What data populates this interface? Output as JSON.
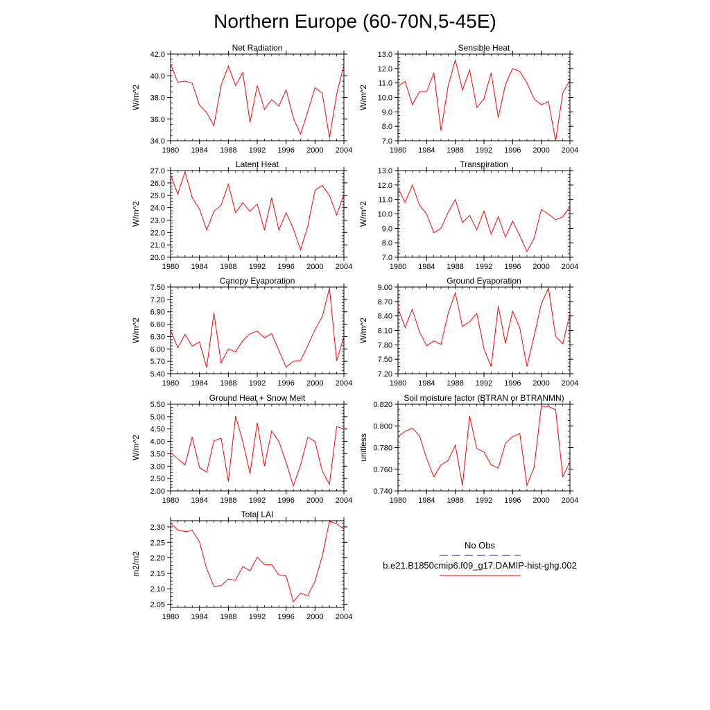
{
  "title": "Northern Europe (60-70N,5-45E)",
  "legend": {
    "obs_label": "No Obs",
    "model_label": "b.e21.B1850cmip6.f09_g17.DAMIP-hist-ghg.002",
    "obs_color": "#1a1aa8",
    "model_color": "#ff0000"
  },
  "chart_data": [
    {
      "type": "line",
      "title": "Net Radiation",
      "ylabel": "W/m^2",
      "x": [
        1980,
        1981,
        1982,
        1983,
        1984,
        1985,
        1986,
        1987,
        1988,
        1989,
        1990,
        1991,
        1992,
        1993,
        1994,
        1995,
        1996,
        1997,
        1998,
        1999,
        2000,
        2001,
        2002,
        2003,
        2004
      ],
      "xlim": [
        1980,
        2004
      ],
      "xticks": [
        "1980",
        "1984",
        "1988",
        "1992",
        "1996",
        "2000",
        "2004"
      ],
      "ylim": [
        34.0,
        42.0
      ],
      "yticks": [
        "34.0",
        "36.0",
        "38.0",
        "40.0",
        "42.0"
      ],
      "series": [
        {
          "values": [
            41.1,
            39.4,
            39.5,
            39.3,
            37.3,
            36.6,
            35.4,
            39.1,
            40.9,
            39.1,
            40.3,
            35.7,
            39.1,
            36.9,
            37.8,
            37.2,
            38.7,
            36.1,
            34.6,
            36.7,
            38.9,
            38.4,
            34.3,
            38.3,
            41.0
          ],
          "color": "#ff0000"
        }
      ]
    },
    {
      "type": "line",
      "title": "Sensible Heat",
      "ylabel": "W/m^2",
      "x": [
        1980,
        1981,
        1982,
        1983,
        1984,
        1985,
        1986,
        1987,
        1988,
        1989,
        1990,
        1991,
        1992,
        1993,
        1994,
        1995,
        1996,
        1997,
        1998,
        1999,
        2000,
        2001,
        2002,
        2003,
        2004
      ],
      "xlim": [
        1980,
        2004
      ],
      "xticks": [
        "1980",
        "1984",
        "1988",
        "1992",
        "1996",
        "2000",
        "2004"
      ],
      "ylim": [
        7.0,
        13.0
      ],
      "yticks": [
        "7.0",
        "8.0",
        "9.0",
        "10.0",
        "11.0",
        "12.0",
        "13.0"
      ],
      "series": [
        {
          "values": [
            10.8,
            11.1,
            9.5,
            10.4,
            10.4,
            11.7,
            7.7,
            10.8,
            12.6,
            10.5,
            11.9,
            9.3,
            9.9,
            11.7,
            8.6,
            10.9,
            12.0,
            11.8,
            11.0,
            9.9,
            9.5,
            9.7,
            7.0,
            10.3,
            11.2
          ],
          "color": "#ff0000"
        }
      ]
    },
    {
      "type": "line",
      "title": "Latent Heat",
      "ylabel": "W/m^2",
      "x": [
        1980,
        1981,
        1982,
        1983,
        1984,
        1985,
        1986,
        1987,
        1988,
        1989,
        1990,
        1991,
        1992,
        1993,
        1994,
        1995,
        1996,
        1997,
        1998,
        1999,
        2000,
        2001,
        2002,
        2003,
        2004
      ],
      "xlim": [
        1980,
        2004
      ],
      "xticks": [
        "1980",
        "1984",
        "1988",
        "1992",
        "1996",
        "2000",
        "2004"
      ],
      "ylim": [
        20.0,
        27.0
      ],
      "yticks": [
        "20.0",
        "21.0",
        "22.0",
        "23.0",
        "24.0",
        "25.0",
        "26.0",
        "27.0"
      ],
      "series": [
        {
          "values": [
            26.7,
            25.1,
            26.9,
            24.8,
            23.9,
            22.2,
            23.7,
            24.2,
            25.9,
            23.6,
            24.4,
            23.7,
            24.3,
            22.2,
            24.8,
            22.2,
            23.6,
            22.3,
            20.6,
            22.5,
            25.4,
            25.8,
            25.0,
            23.4,
            25.1
          ],
          "color": "#ff0000"
        }
      ]
    },
    {
      "type": "line",
      "title": "Transpiration",
      "ylabel": "W/m^2",
      "x": [
        1980,
        1981,
        1982,
        1983,
        1984,
        1985,
        1986,
        1987,
        1988,
        1989,
        1990,
        1991,
        1992,
        1993,
        1994,
        1995,
        1996,
        1997,
        1998,
        1999,
        2000,
        2001,
        2002,
        2003,
        2004
      ],
      "xlim": [
        1980,
        2004
      ],
      "xticks": [
        "1980",
        "1984",
        "1988",
        "1992",
        "1996",
        "2000",
        "2004"
      ],
      "ylim": [
        7.0,
        13.0
      ],
      "yticks": [
        "7.0",
        "8.0",
        "9.0",
        "10.0",
        "11.0",
        "12.0",
        "13.0"
      ],
      "series": [
        {
          "values": [
            11.8,
            10.8,
            12.0,
            10.6,
            10.0,
            8.7,
            9.0,
            10.1,
            11.0,
            9.4,
            9.9,
            8.9,
            10.2,
            8.6,
            9.8,
            8.4,
            9.5,
            8.5,
            7.4,
            8.3,
            10.3,
            10.0,
            9.6,
            9.8,
            10.5
          ],
          "color": "#ff0000"
        }
      ]
    },
    {
      "type": "line",
      "title": "Canopy Evaporation",
      "ylabel": "W/m^2",
      "x": [
        1980,
        1981,
        1982,
        1983,
        1984,
        1985,
        1986,
        1987,
        1988,
        1989,
        1990,
        1991,
        1992,
        1993,
        1994,
        1995,
        1996,
        1997,
        1998,
        1999,
        2000,
        2001,
        2002,
        2003,
        2004
      ],
      "xlim": [
        1980,
        2004
      ],
      "xticks": [
        "1980",
        "1984",
        "1988",
        "1992",
        "1996",
        "2000",
        "2004"
      ],
      "ylim": [
        5.4,
        7.5
      ],
      "yticks": [
        "5.40",
        "5.70",
        "6.00",
        "6.30",
        "6.60",
        "6.90",
        "7.20",
        "7.50"
      ],
      "series": [
        {
          "values": [
            6.45,
            6.03,
            6.35,
            6.07,
            6.17,
            5.55,
            6.87,
            5.66,
            6.0,
            5.93,
            6.2,
            6.37,
            6.43,
            6.27,
            6.37,
            5.96,
            5.56,
            5.7,
            5.72,
            6.08,
            6.47,
            6.78,
            7.47,
            5.71,
            6.3
          ],
          "color": "#ff0000"
        }
      ]
    },
    {
      "type": "line",
      "title": "Ground Evaporation",
      "ylabel": "W/m^2",
      "x": [
        1980,
        1981,
        1982,
        1983,
        1984,
        1985,
        1986,
        1987,
        1988,
        1989,
        1990,
        1991,
        1992,
        1993,
        1994,
        1995,
        1996,
        1997,
        1998,
        1999,
        2000,
        2001,
        2002,
        2003,
        2004
      ],
      "xlim": [
        1980,
        2004
      ],
      "xticks": [
        "1980",
        "1984",
        "1988",
        "1992",
        "1996",
        "2000",
        "2004"
      ],
      "ylim": [
        7.2,
        9.0
      ],
      "yticks": [
        "7.20",
        "7.50",
        "7.80",
        "8.10",
        "8.40",
        "8.70",
        "9.00"
      ],
      "series": [
        {
          "values": [
            8.56,
            8.16,
            8.54,
            8.07,
            7.78,
            7.88,
            7.81,
            8.45,
            8.88,
            8.18,
            8.28,
            8.45,
            7.72,
            7.35,
            8.6,
            7.83,
            8.5,
            8.15,
            7.35,
            7.98,
            8.65,
            8.98,
            7.98,
            7.82,
            8.45
          ],
          "color": "#ff0000"
        }
      ]
    },
    {
      "type": "line",
      "title": "Ground Heat + Snow Melt",
      "ylabel": "W/m^2",
      "x": [
        1980,
        1981,
        1982,
        1983,
        1984,
        1985,
        1986,
        1987,
        1988,
        1989,
        1990,
        1991,
        1992,
        1993,
        1994,
        1995,
        1996,
        1997,
        1998,
        1999,
        2000,
        2001,
        2002,
        2003,
        2004
      ],
      "xlim": [
        1980,
        2004
      ],
      "xticks": [
        "1980",
        "1984",
        "1988",
        "1992",
        "1996",
        "2000",
        "2004"
      ],
      "ylim": [
        2.0,
        5.5
      ],
      "yticks": [
        "2.00",
        "2.50",
        "3.00",
        "3.50",
        "4.00",
        "4.50",
        "5.00",
        "5.50"
      ],
      "series": [
        {
          "values": [
            3.55,
            3.3,
            3.05,
            4.17,
            2.95,
            2.75,
            4.02,
            4.13,
            2.38,
            5.02,
            4.0,
            2.7,
            4.75,
            3.0,
            4.42,
            4.0,
            3.15,
            2.2,
            3.05,
            4.17,
            4.0,
            2.8,
            2.27,
            4.6,
            4.5
          ],
          "color": "#ff0000"
        }
      ]
    },
    {
      "type": "line",
      "title": "Soil moisture factor (BTRAN or BTRANMN)",
      "ylabel": "unitless",
      "x": [
        1980,
        1981,
        1982,
        1983,
        1984,
        1985,
        1986,
        1987,
        1988,
        1989,
        1990,
        1991,
        1992,
        1993,
        1994,
        1995,
        1996,
        1997,
        1998,
        1999,
        2000,
        2001,
        2002,
        2003,
        2004
      ],
      "xlim": [
        1980,
        2004
      ],
      "xticks": [
        "1980",
        "1984",
        "1988",
        "1992",
        "1996",
        "2000",
        "2004"
      ],
      "ylim": [
        0.74,
        0.82
      ],
      "yticks": [
        "0.740",
        "0.760",
        "0.780",
        "0.800",
        "0.820"
      ],
      "series": [
        {
          "values": [
            0.79,
            0.795,
            0.798,
            0.791,
            0.77,
            0.753,
            0.764,
            0.768,
            0.782,
            0.745,
            0.809,
            0.779,
            0.776,
            0.764,
            0.761,
            0.784,
            0.79,
            0.793,
            0.745,
            0.762,
            0.818,
            0.818,
            0.815,
            0.753,
            0.767
          ],
          "color": "#ff0000"
        }
      ]
    },
    {
      "type": "line",
      "title": "Total LAI",
      "ylabel": "m2/m2",
      "x": [
        1980,
        1981,
        1982,
        1983,
        1984,
        1985,
        1986,
        1987,
        1988,
        1989,
        1990,
        1991,
        1992,
        1993,
        1994,
        1995,
        1996,
        1997,
        1998,
        1999,
        2000,
        2001,
        2002,
        2003,
        2004
      ],
      "xlim": [
        1980,
        2004
      ],
      "xticks": [
        "1980",
        "1984",
        "1988",
        "1992",
        "1996",
        "2000",
        "2004"
      ],
      "ylim": [
        2.04,
        2.32
      ],
      "yticks": [
        "2.05",
        "2.10",
        "2.15",
        "2.20",
        "2.25",
        "2.30"
      ],
      "series": [
        {
          "values": [
            2.312,
            2.29,
            2.285,
            2.288,
            2.252,
            2.165,
            2.108,
            2.11,
            2.132,
            2.128,
            2.172,
            2.158,
            2.202,
            2.178,
            2.178,
            2.145,
            2.142,
            2.058,
            2.086,
            2.078,
            2.125,
            2.205,
            2.318,
            2.31,
            2.293
          ],
          "color": "#ff0000"
        }
      ]
    }
  ]
}
